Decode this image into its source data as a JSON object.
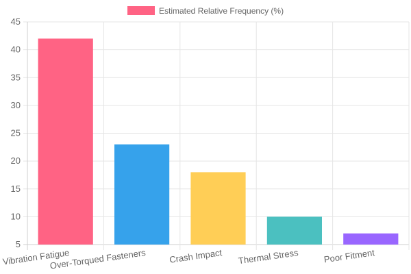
{
  "chart_data": {
    "type": "bar",
    "categories": [
      "Vibration Fatigue",
      "Over-Torqued Fasteners",
      "Crash Impact",
      "Thermal Stress",
      "Poor Fitment"
    ],
    "series": [
      {
        "name": "Estimated Relative Frequency (%)",
        "values": [
          42,
          23,
          18,
          10,
          7
        ]
      }
    ],
    "bar_colors": [
      "#ff6384",
      "#36a2eb",
      "#ffce56",
      "#4bc0c0",
      "#9966ff"
    ],
    "legend_color": "#ff6384",
    "ylim": [
      5,
      45
    ],
    "yticks": [
      5,
      10,
      15,
      20,
      25,
      30,
      35,
      40,
      45
    ],
    "grid": true,
    "legend_position": "top"
  }
}
